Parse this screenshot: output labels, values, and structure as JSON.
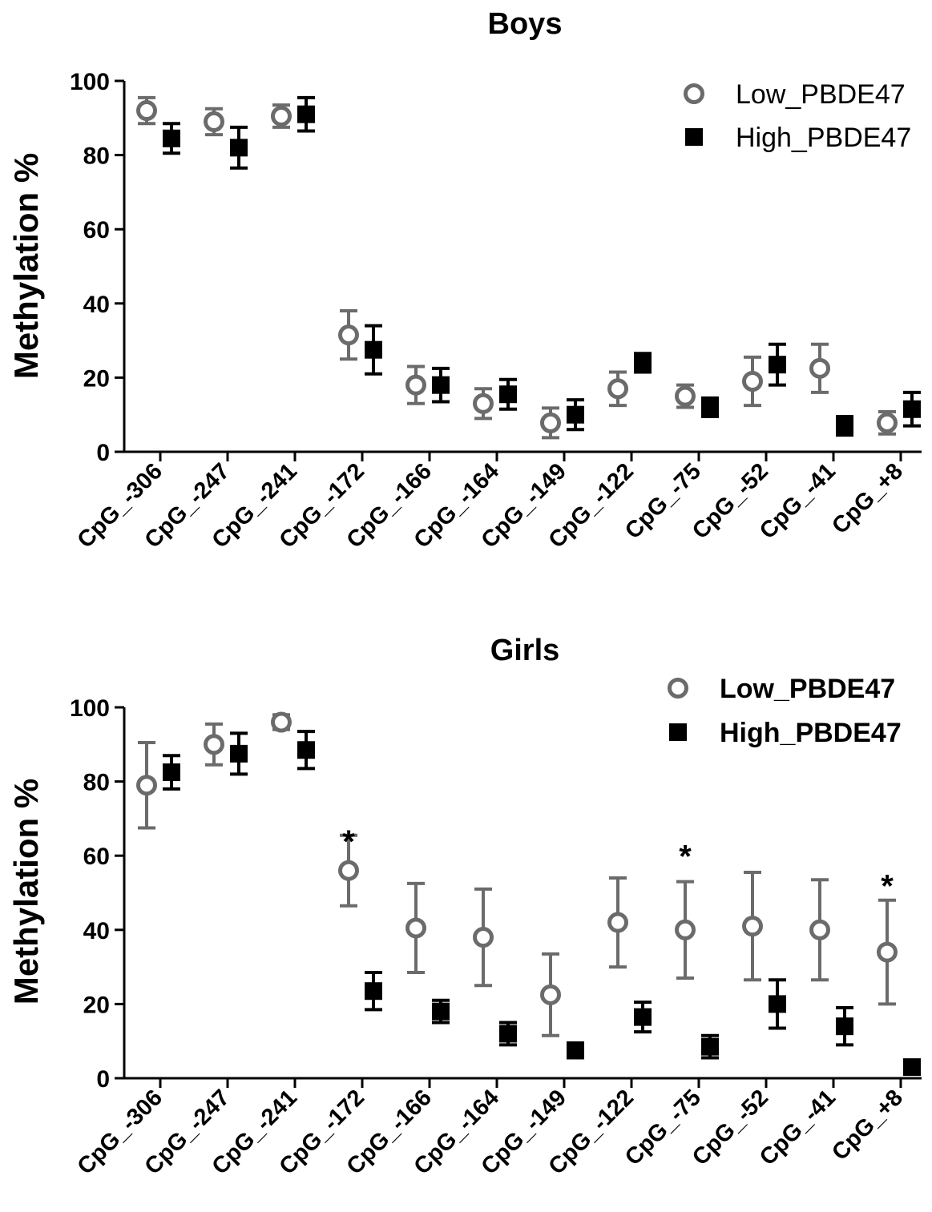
{
  "colors": {
    "low": "#6b6b6b",
    "high": "#000000",
    "axis": "#000000"
  },
  "chart_data": [
    {
      "type": "scatter",
      "title": "Boys",
      "ylabel": "Methylation %",
      "xlabel": "",
      "ylim": [
        0,
        100
      ],
      "yticks": [
        "0",
        "20",
        "40",
        "60",
        "80",
        "100"
      ],
      "categories": [
        "CpG_-306",
        "CpG_-247",
        "CpG_-241",
        "CpG_-172",
        "CpG_-166",
        "CpG_-164",
        "CpG_-149",
        "CpG_-122",
        "CpG_-75",
        "CpG_-52",
        "CpG_-41",
        "CpG_+8"
      ],
      "legend": {
        "position": "top-right"
      },
      "series": [
        {
          "name": "Low_PBDE47",
          "marker": "open-circle",
          "values": [
            92,
            89,
            90.5,
            31.5,
            18,
            13,
            7.8,
            17,
            15,
            19,
            22.5,
            7.8
          ],
          "errors": [
            3.5,
            3.5,
            3,
            6.5,
            5,
            4,
            4,
            4.5,
            3,
            6.5,
            6.5,
            3
          ]
        },
        {
          "name": "High_PBDE47",
          "marker": "filled-square",
          "values": [
            84.5,
            82,
            91,
            27.5,
            18,
            15.5,
            10,
            24,
            12,
            23.5,
            7,
            11.5
          ],
          "errors": [
            4,
            5.5,
            4.5,
            6.5,
            4.5,
            4,
            4,
            2.5,
            2.5,
            5.5,
            2.5,
            4.5
          ]
        }
      ],
      "annotations": []
    },
    {
      "type": "scatter",
      "title": "Girls",
      "ylabel": "Methylation %",
      "xlabel": "",
      "ylim": [
        0,
        100
      ],
      "yticks": [
        "0",
        "20",
        "40",
        "60",
        "80",
        "100"
      ],
      "categories": [
        "CpG_-306",
        "CpG_-247",
        "CpG_-241",
        "CpG_-172",
        "CpG_-166",
        "CpG_-164",
        "CpG_-149",
        "CpG_-122",
        "CpG_-75",
        "CpG_-52",
        "CpG_-41",
        "CpG_+8"
      ],
      "legend": {
        "position": "top-right"
      },
      "series": [
        {
          "name": "Low_PBDE47",
          "marker": "open-circle",
          "values": [
            79,
            90,
            96,
            56,
            40.5,
            38,
            22.5,
            42,
            40,
            41,
            40,
            34
          ],
          "errors": [
            11.5,
            5.5,
            2,
            9.5,
            12,
            13,
            11,
            12,
            13,
            14.5,
            13.5,
            14
          ]
        },
        {
          "name": "High_PBDE47",
          "marker": "filled-square",
          "values": [
            82.5,
            87.5,
            88.5,
            23.5,
            18,
            12,
            7.5,
            16.5,
            8.5,
            20,
            14,
            3
          ],
          "errors": [
            4.5,
            5.5,
            5,
            5,
            3,
            3,
            2,
            4,
            3,
            6.5,
            5,
            1.5
          ]
        }
      ],
      "annotations": [
        {
          "text": "*",
          "category": "CpG_-172",
          "y": 67
        },
        {
          "text": "*",
          "category": "CpG_-75",
          "y": 63
        },
        {
          "text": "*",
          "category": "CpG_+8",
          "y": 55
        }
      ]
    }
  ]
}
